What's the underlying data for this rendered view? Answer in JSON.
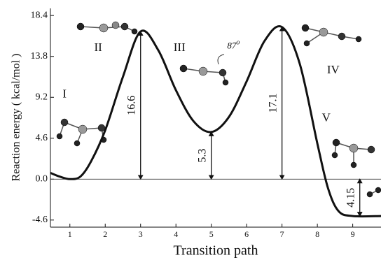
{
  "chart_data": {
    "type": "line",
    "ylabel": "Reaction energy ( kcal/mol )",
    "xlabel": "Transition path",
    "x": [
      0.45,
      0.7,
      1,
      1.3,
      1.6,
      2,
      2.5,
      3,
      3.5,
      4,
      4.5,
      5,
      5.5,
      6,
      6.5,
      7,
      7.5,
      8,
      8.3,
      8.6,
      9,
      9.8
    ],
    "series": [
      {
        "color": "#111111",
        "values": [
          0.7,
          0.3,
          0,
          0.3,
          2,
          5.5,
          11.5,
          16.6,
          14.5,
          10,
          6.5,
          5.3,
          7,
          11,
          15.5,
          17.1,
          13,
          4,
          -1,
          -3.6,
          -4.15,
          -4.15
        ]
      }
    ],
    "xlim": [
      0.45,
      9.8
    ],
    "ylim": [
      -5.4,
      19.2
    ],
    "xticks": [
      1,
      2,
      3,
      4,
      5,
      6,
      7,
      8,
      9
    ],
    "yticks": [
      18.4,
      13.8,
      9.2,
      4.6,
      {
        "value": 0,
        "label": "0.0"
      },
      -4.6
    ],
    "reference_line": 0,
    "annotations": [
      {
        "x": 3,
        "value": 16.6,
        "direction": "up"
      },
      {
        "x": 5,
        "value": 5.3,
        "direction": "up"
      },
      {
        "x": 7,
        "value": 17.1,
        "direction": "up"
      },
      {
        "x": 9.2,
        "value": 4.15,
        "direction": "down"
      }
    ],
    "states": [
      {
        "label": "I",
        "x": 0.85,
        "y": 9.5
      },
      {
        "label": "II",
        "x": 1.8,
        "y": 14.7
      },
      {
        "label": "III",
        "x": 4.1,
        "y": 14.7
      },
      {
        "label": "IV",
        "x": 8.45,
        "y": 12.2
      },
      {
        "label": "V",
        "x": 8.25,
        "y": 6.8
      }
    ],
    "angle_note": {
      "text": "87",
      "superscript": "o",
      "x": 5.45,
      "y": 14.9
    }
  }
}
